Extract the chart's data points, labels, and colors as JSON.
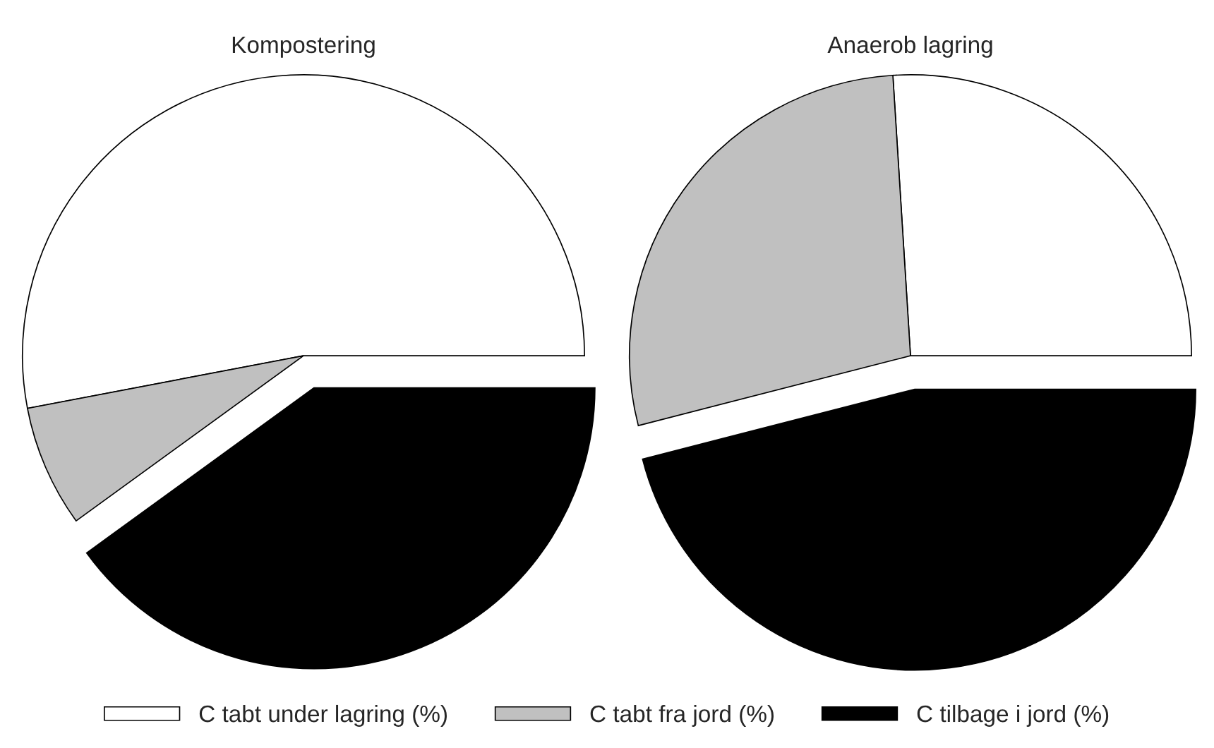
{
  "chart_data": [
    {
      "type": "pie",
      "title": "Kompostering",
      "categories": [
        "C tabt under lagring (%)",
        "C tabt fra jord (%)",
        "C tilbage i jord (%)"
      ],
      "values": [
        53,
        7,
        40
      ],
      "colors": [
        "#ffffff",
        "#c0c0c0",
        "#000000"
      ],
      "legend": "bottom"
    },
    {
      "type": "pie",
      "title": "Anaerob lagring",
      "categories": [
        null,
        null,
        null
      ],
      "values": [
        26,
        28,
        46
      ],
      "colors": [
        "#ffffff",
        "#c0c0c0",
        "#000000"
      ]
    }
  ]
}
